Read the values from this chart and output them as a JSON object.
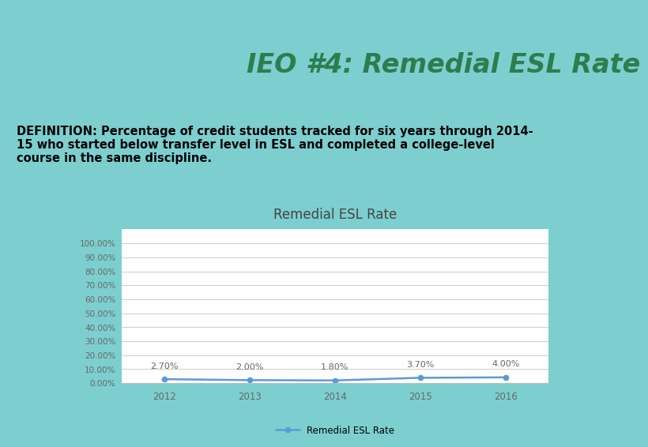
{
  "title": "IEO #4: Remedial ESL Rate",
  "chart_title": "Remedial ESL Rate",
  "definition_text": "DEFINITION: Percentage of credit students tracked for six years through 2014-\n15 who started below transfer level in ESL and completed a college-level\ncourse in the same discipline.",
  "years": [
    2012,
    2013,
    2014,
    2015,
    2016
  ],
  "values": [
    2.7,
    2.0,
    1.8,
    3.7,
    4.0
  ],
  "value_labels": [
    "2.70%",
    "2.00%",
    "1.80%",
    "3.70%",
    "4.00%"
  ],
  "yticks": [
    0,
    10,
    20,
    30,
    40,
    50,
    60,
    70,
    80,
    90,
    100
  ],
  "ytick_labels": [
    "0.00%",
    "10.00%",
    "20.00%",
    "30.00%",
    "40.00%",
    "50.00%",
    "60.00%",
    "70.00%",
    "80.00%",
    "90.00%",
    "100.00%"
  ],
  "line_color": "#5B9BD5",
  "marker_color": "#5B9BD5",
  "legend_label": "Remedial ESL Rate",
  "outer_bg": "#7DCFCF",
  "header_bg": "#FFFFFF",
  "chart_area_bg": "#FFFFFF",
  "grid_color": "#CCCCCC",
  "title_color": "#2E7D4F",
  "title_fontsize": 24,
  "definition_fontsize": 10.5,
  "chart_title_fontsize": 12,
  "tick_fontsize": 7.5,
  "annotation_fontsize": 8
}
